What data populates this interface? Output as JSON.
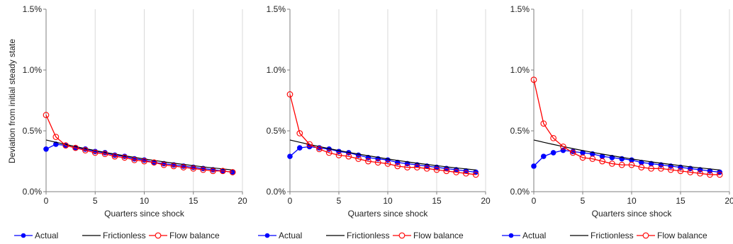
{
  "colors": {
    "actual": "#0000ff",
    "frictionless": "#000000",
    "flow_balance": "#ff0000",
    "grid": "#d9d9d9",
    "axis": "#7f7f7f"
  },
  "shared": {
    "ylabel": "Deviation from initial steady state",
    "xlabel": "Quarters since shock",
    "legend": [
      "Actual",
      "Frictionless",
      "Flow balance"
    ]
  },
  "chart_data": [
    {
      "type": "line",
      "xlabel": "Quarters since shock",
      "ylabel": "Deviation from initial steady state",
      "x_ticks": [
        "0",
        "5",
        "10",
        "15",
        "20"
      ],
      "y_ticks": [
        "0.0%",
        "0.5%",
        "1.0%",
        "1.5%"
      ],
      "xlim": [
        0,
        20
      ],
      "ylim": [
        0,
        1.5
      ],
      "grid": "vertical",
      "legend_position": "bottom",
      "x": [
        0,
        1,
        2,
        3,
        4,
        5,
        6,
        7,
        8,
        9,
        10,
        11,
        12,
        13,
        14,
        15,
        16,
        17,
        18,
        19
      ],
      "series": [
        {
          "name": "Actual",
          "values": [
            0.35,
            0.39,
            0.38,
            0.36,
            0.35,
            0.33,
            0.32,
            0.3,
            0.29,
            0.27,
            0.26,
            0.24,
            0.23,
            0.22,
            0.21,
            0.2,
            0.19,
            0.18,
            0.17,
            0.16
          ]
        },
        {
          "name": "Frictionless",
          "values": [
            0.425,
            0.406,
            0.388,
            0.371,
            0.354,
            0.338,
            0.323,
            0.309,
            0.295,
            0.282,
            0.269,
            0.257,
            0.245,
            0.234,
            0.224,
            0.214,
            0.204,
            0.195,
            0.187,
            0.178
          ]
        },
        {
          "name": "Flow balance",
          "values": [
            0.63,
            0.45,
            0.38,
            0.36,
            0.34,
            0.32,
            0.31,
            0.29,
            0.28,
            0.26,
            0.25,
            0.24,
            0.22,
            0.21,
            0.2,
            0.19,
            0.18,
            0.17,
            0.17,
            0.16
          ]
        }
      ]
    },
    {
      "type": "line",
      "xlabel": "Quarters since shock",
      "ylabel": "",
      "x_ticks": [
        "0",
        "5",
        "10",
        "15",
        "20"
      ],
      "y_ticks": [
        "0.0%",
        "0.5%",
        "1.0%",
        "1.5%"
      ],
      "xlim": [
        0,
        20
      ],
      "ylim": [
        0,
        1.5
      ],
      "grid": "vertical",
      "legend_position": "bottom",
      "x": [
        0,
        1,
        2,
        3,
        4,
        5,
        6,
        7,
        8,
        9,
        10,
        11,
        12,
        13,
        14,
        15,
        16,
        17,
        18,
        19
      ],
      "series": [
        {
          "name": "Actual",
          "values": [
            0.29,
            0.36,
            0.37,
            0.36,
            0.35,
            0.33,
            0.32,
            0.3,
            0.28,
            0.27,
            0.26,
            0.24,
            0.23,
            0.22,
            0.21,
            0.2,
            0.19,
            0.18,
            0.17,
            0.16
          ]
        },
        {
          "name": "Frictionless",
          "values": [
            0.425,
            0.406,
            0.388,
            0.371,
            0.354,
            0.338,
            0.323,
            0.309,
            0.295,
            0.282,
            0.269,
            0.257,
            0.245,
            0.234,
            0.224,
            0.214,
            0.204,
            0.195,
            0.187,
            0.178
          ]
        },
        {
          "name": "Flow balance",
          "values": [
            0.8,
            0.48,
            0.39,
            0.35,
            0.32,
            0.3,
            0.29,
            0.27,
            0.25,
            0.24,
            0.23,
            0.21,
            0.2,
            0.2,
            0.19,
            0.18,
            0.17,
            0.16,
            0.15,
            0.14
          ]
        }
      ]
    },
    {
      "type": "line",
      "xlabel": "Quarters since shock",
      "ylabel": "",
      "x_ticks": [
        "0",
        "5",
        "10",
        "15",
        "20"
      ],
      "y_ticks": [
        "0.0%",
        "0.5%",
        "1.0%",
        "1.5%"
      ],
      "xlim": [
        0,
        20
      ],
      "ylim": [
        0,
        1.5
      ],
      "grid": "vertical",
      "legend_position": "bottom",
      "x": [
        0,
        1,
        2,
        3,
        4,
        5,
        6,
        7,
        8,
        9,
        10,
        11,
        12,
        13,
        14,
        15,
        16,
        17,
        18,
        19
      ],
      "series": [
        {
          "name": "Actual",
          "values": [
            0.21,
            0.29,
            0.32,
            0.34,
            0.33,
            0.32,
            0.31,
            0.29,
            0.28,
            0.27,
            0.26,
            0.24,
            0.23,
            0.22,
            0.21,
            0.2,
            0.19,
            0.18,
            0.17,
            0.16
          ]
        },
        {
          "name": "Frictionless",
          "values": [
            0.425,
            0.406,
            0.388,
            0.371,
            0.354,
            0.338,
            0.323,
            0.309,
            0.295,
            0.282,
            0.269,
            0.257,
            0.245,
            0.234,
            0.224,
            0.214,
            0.204,
            0.195,
            0.187,
            0.178
          ]
        },
        {
          "name": "Flow balance",
          "values": [
            0.92,
            0.56,
            0.44,
            0.37,
            0.32,
            0.28,
            0.27,
            0.25,
            0.23,
            0.22,
            0.22,
            0.2,
            0.19,
            0.19,
            0.18,
            0.17,
            0.16,
            0.15,
            0.14,
            0.14
          ]
        }
      ]
    }
  ]
}
